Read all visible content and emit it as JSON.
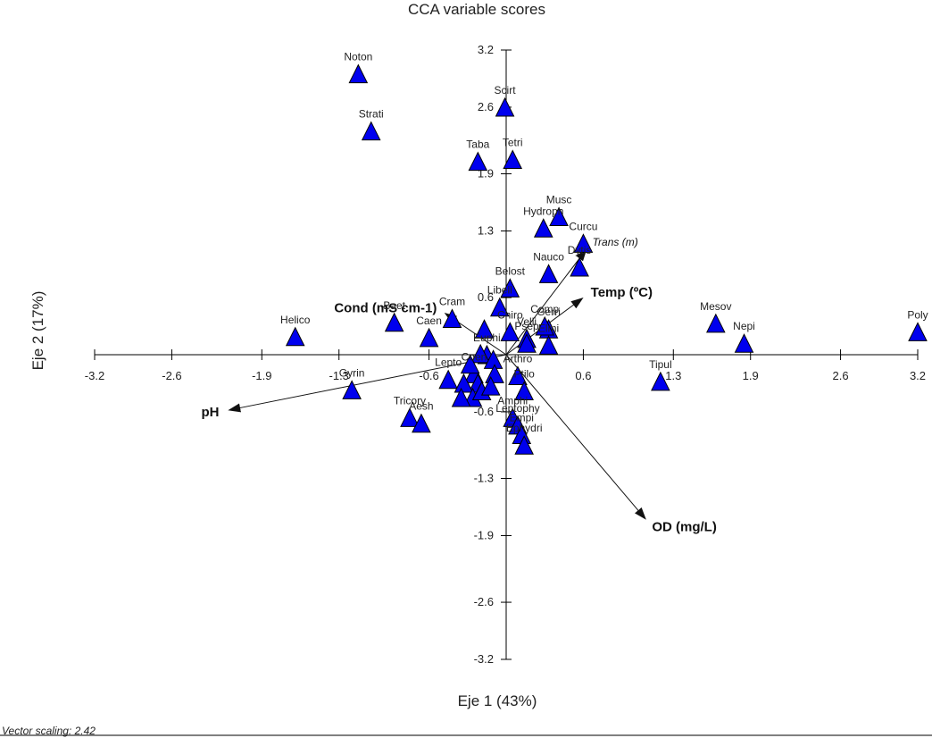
{
  "chart_data": {
    "type": "scatter",
    "title": "CCA variable scores",
    "xlabel": "Eje 1 (43%)",
    "ylabel": "Eje 2 (17%)",
    "xlim": [
      -3.2,
      3.2
    ],
    "ylim": [
      -3.2,
      3.2
    ],
    "xticks": [
      -3.2,
      -2.6,
      -1.9,
      -1.3,
      -0.6,
      0.6,
      1.3,
      1.9,
      2.6,
      3.2
    ],
    "xtick_labels": [
      "-3.2",
      "-2.6",
      "-1.9",
      "-1.3",
      "-0.6",
      "0.6",
      "1.3",
      "1.9",
      "2.6",
      "3.2"
    ],
    "yticks": [
      3.2,
      2.6,
      1.9,
      1.3,
      0.6,
      -0.6,
      -1.3,
      -1.9,
      -2.6,
      -3.2
    ],
    "ytick_labels": [
      "3.2",
      "2.6",
      "1.9",
      "1.3",
      "0.6",
      "-0.6",
      "-1.3",
      "-1.9",
      "-2.6",
      "-3.2"
    ],
    "marker_color": "#0000ee",
    "footnote": "Vector scaling: 2.42",
    "species": [
      {
        "name": "Noton",
        "x": -1.15,
        "y": 2.95
      },
      {
        "name": "Strati",
        "x": -1.05,
        "y": 2.35
      },
      {
        "name": "Scirt",
        "x": -0.01,
        "y": 2.6
      },
      {
        "name": "Tetri",
        "x": 0.05,
        "y": 2.05
      },
      {
        "name": "Taba",
        "x": -0.22,
        "y": 2.03
      },
      {
        "name": "Musc",
        "x": 0.41,
        "y": 1.45
      },
      {
        "name": "Hydroph",
        "x": 0.29,
        "y": 1.33
      },
      {
        "name": "Curcu",
        "x": 0.6,
        "y": 1.17
      },
      {
        "name": "Dytis",
        "x": 0.57,
        "y": 0.92
      },
      {
        "name": "Nauco",
        "x": 0.33,
        "y": 0.85
      },
      {
        "name": "Belost",
        "x": 0.03,
        "y": 0.7
      },
      {
        "name": "Libell",
        "x": -0.05,
        "y": 0.5
      },
      {
        "name": "Cram",
        "x": -0.42,
        "y": 0.38
      },
      {
        "name": "Gerri",
        "x": 0.33,
        "y": 0.27
      },
      {
        "name": "Comp",
        "x": 0.3,
        "y": 0.3
      },
      {
        "name": "Chiro",
        "x": 0.03,
        "y": 0.24
      },
      {
        "name": "Velli",
        "x": 0.16,
        "y": 0.17
      },
      {
        "name": "Elmi",
        "x": 0.33,
        "y": 0.1
      },
      {
        "name": "Psep",
        "x": 0.16,
        "y": 0.12
      },
      {
        "name": "Helico",
        "x": -1.64,
        "y": 0.19
      },
      {
        "name": "Baet",
        "x": -0.87,
        "y": 0.34
      },
      {
        "name": "Caen",
        "x": -0.6,
        "y": 0.18
      },
      {
        "name": "Mesov",
        "x": 1.63,
        "y": 0.33
      },
      {
        "name": "Nepi",
        "x": 1.85,
        "y": 0.12
      },
      {
        "name": "Poly",
        "x": 3.2,
        "y": 0.24
      },
      {
        "name": "Euphi",
        "x": -0.15,
        "y": -0.0
      },
      {
        "name": "Arthro",
        "x": 0.09,
        "y": -0.22
      },
      {
        "name": "Ptilo",
        "x": 0.14,
        "y": -0.38
      },
      {
        "name": "Gyrin",
        "x": -1.2,
        "y": -0.37
      },
      {
        "name": "Coen",
        "x": -0.25,
        "y": -0.2
      },
      {
        "name": "Lepto",
        "x": -0.45,
        "y": -0.26
      },
      {
        "name": "Tipul",
        "x": 1.2,
        "y": -0.28
      },
      {
        "name": "Tricory",
        "x": -0.75,
        "y": -0.66
      },
      {
        "name": "Aesh",
        "x": -0.66,
        "y": -0.72
      },
      {
        "name": "Amphi",
        "x": 0.05,
        "y": -0.66
      },
      {
        "name": "Leptophy",
        "x": 0.09,
        "y": -0.74
      },
      {
        "name": "Empi",
        "x": 0.12,
        "y": -0.84
      },
      {
        "name": "Ephydri",
        "x": 0.14,
        "y": -0.95
      }
    ],
    "species_unlabeled": [
      {
        "x": -0.17,
        "y": 0.27
      },
      {
        "x": -0.2,
        "y": 0.01
      },
      {
        "x": -0.28,
        "y": -0.1
      },
      {
        "x": -0.1,
        "y": -0.05
      },
      {
        "x": -0.22,
        "y": -0.3
      },
      {
        "x": -0.33,
        "y": -0.3
      },
      {
        "x": -0.26,
        "y": -0.45
      },
      {
        "x": -0.19,
        "y": -0.38
      },
      {
        "x": -0.09,
        "y": -0.2
      },
      {
        "x": -0.12,
        "y": -0.33
      },
      {
        "x": -0.35,
        "y": -0.45
      }
    ],
    "vectors": [
      {
        "name": "pH",
        "x": -2.15,
        "y": -0.58,
        "italic": false
      },
      {
        "name": "Cond (mS cm-1)",
        "x": -0.47,
        "y": 0.43,
        "italic": false
      },
      {
        "name": "Temp (ºC)",
        "x": 0.59,
        "y": 0.59,
        "italic": false
      },
      {
        "name": "Trans (m)",
        "x": 0.62,
        "y": 1.1,
        "italic": true
      },
      {
        "name": "OD (mg/L)",
        "x": 1.08,
        "y": -1.72,
        "italic": false
      }
    ]
  }
}
